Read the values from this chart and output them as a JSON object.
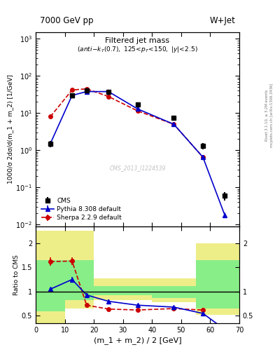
{
  "title_left": "7000 GeV pp",
  "title_right": "W+Jet",
  "plot_title": "Filtered jet mass",
  "plot_subtitle": "(anti-k_{T}(0.7), 125<p_{T}<150, |y|<2.5)",
  "ylabel_main": "1000/σ 2dσ/d(m_1 + m_2) [1/GeV]",
  "ylabel_ratio": "Ratio to CMS",
  "xlabel": "(m_1 + m_2) / 2 [GeV]",
  "watermark": "CMS_2013_I1224539",
  "rivet_label": "Rivet 3.1.10, ≥ 3.2M events",
  "mcplots_label": "mcplots.cern.ch [arXiv:1306.3436]",
  "cms_x": [
    5.0,
    12.5,
    17.5,
    25.0,
    35.0,
    47.5,
    57.5,
    65.0
  ],
  "cms_y": [
    1.5,
    30.0,
    40.0,
    38.0,
    17.0,
    7.5,
    1.3,
    0.06
  ],
  "cms_yerr": [
    0.3,
    3.0,
    4.0,
    3.5,
    2.0,
    0.8,
    0.25,
    0.015
  ],
  "pythia_x": [
    5.0,
    12.5,
    17.5,
    25.0,
    35.0,
    47.5,
    57.5,
    65.0
  ],
  "pythia_y": [
    1.5,
    30.0,
    38.0,
    38.0,
    13.0,
    5.0,
    0.65,
    0.018
  ],
  "pythia_yerr": [
    0.15,
    2.0,
    3.0,
    3.0,
    1.2,
    0.5,
    0.08,
    0.003
  ],
  "sherpa_x": [
    5.0,
    12.5,
    17.5,
    25.0,
    35.0,
    47.5,
    57.5
  ],
  "sherpa_y": [
    8.0,
    42.0,
    45.0,
    28.0,
    11.5,
    5.0,
    0.65
  ],
  "sherpa_yerr": [
    0.8,
    4.0,
    4.5,
    2.8,
    1.2,
    0.5,
    0.08
  ],
  "pythia_ratio_x": [
    5.0,
    12.5,
    17.5,
    25.0,
    35.0,
    47.5,
    57.5,
    65.0
  ],
  "pythia_ratio_y": [
    1.05,
    1.25,
    0.93,
    0.8,
    0.72,
    0.68,
    0.55,
    0.22
  ],
  "pythia_ratio_yerr": [
    0.04,
    0.05,
    0.04,
    0.04,
    0.03,
    0.03,
    0.03,
    0.04
  ],
  "sherpa_ratio_x": [
    5.0,
    12.5,
    17.5,
    25.0,
    35.0,
    47.5,
    57.5
  ],
  "sherpa_ratio_y": [
    1.62,
    1.63,
    0.72,
    0.64,
    0.62,
    0.65,
    0.62
  ],
  "sherpa_ratio_yerr": [
    0.08,
    0.08,
    0.04,
    0.03,
    0.03,
    0.04,
    0.04
  ],
  "band_x_edges": [
    0,
    10,
    20,
    40,
    55,
    70
  ],
  "green_band_lo": [
    0.6,
    0.82,
    0.92,
    0.87,
    0.65,
    0.65
  ],
  "green_band_hi": [
    1.65,
    1.65,
    1.12,
    1.12,
    1.65,
    1.65
  ],
  "yellow_band_lo": [
    0.3,
    0.65,
    0.82,
    0.78,
    0.52,
    0.52
  ],
  "yellow_band_hi": [
    2.25,
    2.25,
    1.28,
    1.28,
    2.0,
    2.0
  ],
  "xlim": [
    0,
    70
  ],
  "ylim_main": [
    0.009,
    1500
  ],
  "ylim_ratio": [
    0.35,
    2.35
  ],
  "yticks_ratio": [
    0.5,
    1.0,
    1.5,
    2.0
  ],
  "color_cms": "black",
  "color_pythia": "#0000cc",
  "color_sherpa": "#cc0000",
  "color_green_band": "#88ee88",
  "color_yellow_band": "#eeee88",
  "legend_labels": [
    "CMS",
    "Pythia 8.308 default",
    "Sherpa 2.2.9 default"
  ]
}
